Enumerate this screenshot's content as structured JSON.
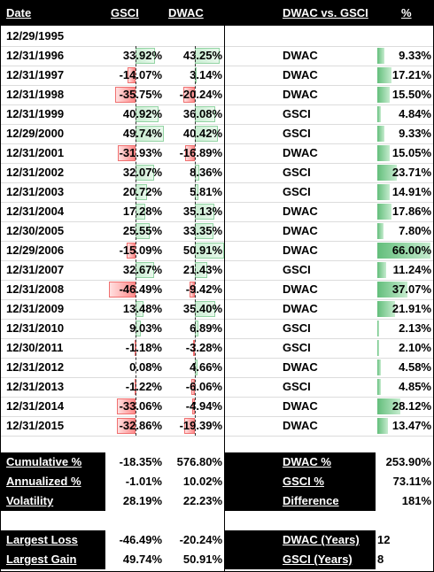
{
  "header": {
    "date_label": "Date",
    "gsci_label": "GSCI",
    "dwac_label": "DWAC",
    "vs_label": "DWAC vs. GSCI",
    "pct_label": "%"
  },
  "start_date": "12/29/1995",
  "rows": [
    {
      "date": "12/31/1996",
      "gsci": "33.92%",
      "dwac": "43.25%",
      "winner": "DWAC",
      "pct": "9.33%",
      "gsci_value": 33.92,
      "dwac_value": 43.25,
      "pct_value": 9.33
    },
    {
      "date": "12/31/1997",
      "gsci": "-14.07%",
      "dwac": "3.14%",
      "winner": "DWAC",
      "pct": "17.21%",
      "gsci_value": -14.07,
      "dwac_value": 3.14,
      "pct_value": 17.21
    },
    {
      "date": "12/31/1998",
      "gsci": "-35.75%",
      "dwac": "-20.24%",
      "winner": "DWAC",
      "pct": "15.50%",
      "gsci_value": -35.75,
      "dwac_value": -20.24,
      "pct_value": 15.5
    },
    {
      "date": "12/31/1999",
      "gsci": "40.92%",
      "dwac": "36.08%",
      "winner": "GSCI",
      "pct": "4.84%",
      "gsci_value": 40.92,
      "dwac_value": 36.08,
      "pct_value": 4.84
    },
    {
      "date": "12/29/2000",
      "gsci": "49.74%",
      "dwac": "40.42%",
      "winner": "GSCI",
      "pct": "9.33%",
      "gsci_value": 49.74,
      "dwac_value": 40.42,
      "pct_value": 9.33
    },
    {
      "date": "12/31/2001",
      "gsci": "-31.93%",
      "dwac": "-16.89%",
      "winner": "DWAC",
      "pct": "15.05%",
      "gsci_value": -31.93,
      "dwac_value": -16.89,
      "pct_value": 15.05
    },
    {
      "date": "12/31/2002",
      "gsci": "32.07%",
      "dwac": "8.36%",
      "winner": "GSCI",
      "pct": "23.71%",
      "gsci_value": 32.07,
      "dwac_value": 8.36,
      "pct_value": 23.71
    },
    {
      "date": "12/31/2003",
      "gsci": "20.72%",
      "dwac": "5.81%",
      "winner": "GSCI",
      "pct": "14.91%",
      "gsci_value": 20.72,
      "dwac_value": 5.81,
      "pct_value": 14.91
    },
    {
      "date": "12/31/2004",
      "gsci": "17.28%",
      "dwac": "35.13%",
      "winner": "DWAC",
      "pct": "17.86%",
      "gsci_value": 17.28,
      "dwac_value": 35.13,
      "pct_value": 17.86
    },
    {
      "date": "12/30/2005",
      "gsci": "25.55%",
      "dwac": "33.35%",
      "winner": "DWAC",
      "pct": "7.80%",
      "gsci_value": 25.55,
      "dwac_value": 33.35,
      "pct_value": 7.8
    },
    {
      "date": "12/29/2006",
      "gsci": "-15.09%",
      "dwac": "50.91%",
      "winner": "DWAC",
      "pct": "66.00%",
      "gsci_value": -15.09,
      "dwac_value": 50.91,
      "pct_value": 66.0
    },
    {
      "date": "12/31/2007",
      "gsci": "32.67%",
      "dwac": "21.43%",
      "winner": "GSCI",
      "pct": "11.24%",
      "gsci_value": 32.67,
      "dwac_value": 21.43,
      "pct_value": 11.24
    },
    {
      "date": "12/31/2008",
      "gsci": "-46.49%",
      "dwac": "-9.42%",
      "winner": "DWAC",
      "pct": "37.07%",
      "gsci_value": -46.49,
      "dwac_value": -9.42,
      "pct_value": 37.07
    },
    {
      "date": "12/31/2009",
      "gsci": "13.48%",
      "dwac": "35.40%",
      "winner": "DWAC",
      "pct": "21.91%",
      "gsci_value": 13.48,
      "dwac_value": 35.4,
      "pct_value": 21.91
    },
    {
      "date": "12/31/2010",
      "gsci": "9.03%",
      "dwac": "6.89%",
      "winner": "GSCI",
      "pct": "2.13%",
      "gsci_value": 9.03,
      "dwac_value": 6.89,
      "pct_value": 2.13
    },
    {
      "date": "12/30/2011",
      "gsci": "-1.18%",
      "dwac": "-3.28%",
      "winner": "GSCI",
      "pct": "2.10%",
      "gsci_value": -1.18,
      "dwac_value": -3.28,
      "pct_value": 2.1
    },
    {
      "date": "12/31/2012",
      "gsci": "0.08%",
      "dwac": "4.66%",
      "winner": "DWAC",
      "pct": "4.58%",
      "gsci_value": 0.08,
      "dwac_value": 4.66,
      "pct_value": 4.58
    },
    {
      "date": "12/31/2013",
      "gsci": "-1.22%",
      "dwac": "-6.06%",
      "winner": "GSCI",
      "pct": "4.85%",
      "gsci_value": -1.22,
      "dwac_value": -6.06,
      "pct_value": 4.85
    },
    {
      "date": "12/31/2014",
      "gsci": "-33.06%",
      "dwac": "-4.94%",
      "winner": "DWAC",
      "pct": "28.12%",
      "gsci_value": -33.06,
      "dwac_value": -4.94,
      "pct_value": 28.12
    },
    {
      "date": "12/31/2015",
      "gsci": "-32.86%",
      "dwac": "-19.39%",
      "winner": "DWAC",
      "pct": "13.47%",
      "gsci_value": -32.86,
      "dwac_value": -19.39,
      "pct_value": 13.47
    }
  ],
  "stats": [
    {
      "label": "Cumulative %",
      "gsci": "-18.35%",
      "dwac": "576.80%",
      "right_label": "DWAC %",
      "right_value": "253.90%"
    },
    {
      "label": "Annualized %",
      "gsci": "-1.01%",
      "dwac": "10.02%",
      "right_label": "GSCI %",
      "right_value": "73.11%"
    },
    {
      "label": "Volatility",
      "gsci": "28.19%",
      "dwac": "22.23%",
      "right_label": "Difference",
      "right_value": "181%"
    }
  ],
  "extremes": [
    {
      "label": "Largest Loss",
      "gsci": "-46.49%",
      "dwac": "-20.24%",
      "right_label": "DWAC (Years)",
      "right_value": "12"
    },
    {
      "label": "Largest Gain",
      "gsci": "49.74%",
      "dwac": "50.91%",
      "right_label": "GSCI (Years)",
      "right_value": "8"
    }
  ],
  "colors": {
    "positive": "#63be7b",
    "negative": "#f8696b",
    "header_bg": "#000000",
    "header_text": "#ffffff"
  }
}
